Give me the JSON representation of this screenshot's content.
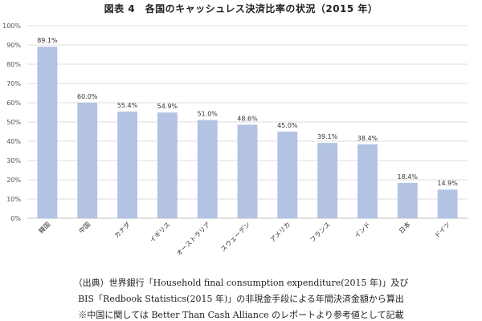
{
  "title": "図表 4　各国のキャッシュレス決済比率の状況（2015 年）",
  "chart_data": {
    "type": "bar",
    "categories": [
      "韓国",
      "中国",
      "カナダ",
      "イギリス",
      "オーストラリア",
      "スウェーデン",
      "アメリカ",
      "フランス",
      "インド",
      "日本",
      "ドイツ"
    ],
    "values": [
      89.1,
      60.0,
      55.4,
      54.9,
      51.0,
      48.6,
      45.0,
      39.1,
      38.4,
      18.4,
      14.9
    ],
    "data_labels": [
      "89.1%",
      "60.0%",
      "55.4%",
      "54.9%",
      "51.0%",
      "48.6%",
      "45.0%",
      "39.1%",
      "38.4%",
      "18.4%",
      "14.9%"
    ],
    "y_ticks": [
      "0%",
      "10%",
      "20%",
      "30%",
      "40%",
      "50%",
      "60%",
      "70%",
      "80%",
      "90%",
      "100%"
    ],
    "ylim": [
      0,
      100
    ],
    "grid": true,
    "bar_color": "#b4c3e3",
    "grid_color": "#dcdcdc"
  },
  "source": {
    "line1": "（出典）世界銀行「Household final consumption expenditure(2015 年)」及び",
    "line2": "BIS「Redbook Statistics(2015 年)」の非現金手段による年間決済金額から算出",
    "line3": "※中国に関しては Better Than Cash Alliance のレポートより参考値として記載"
  }
}
